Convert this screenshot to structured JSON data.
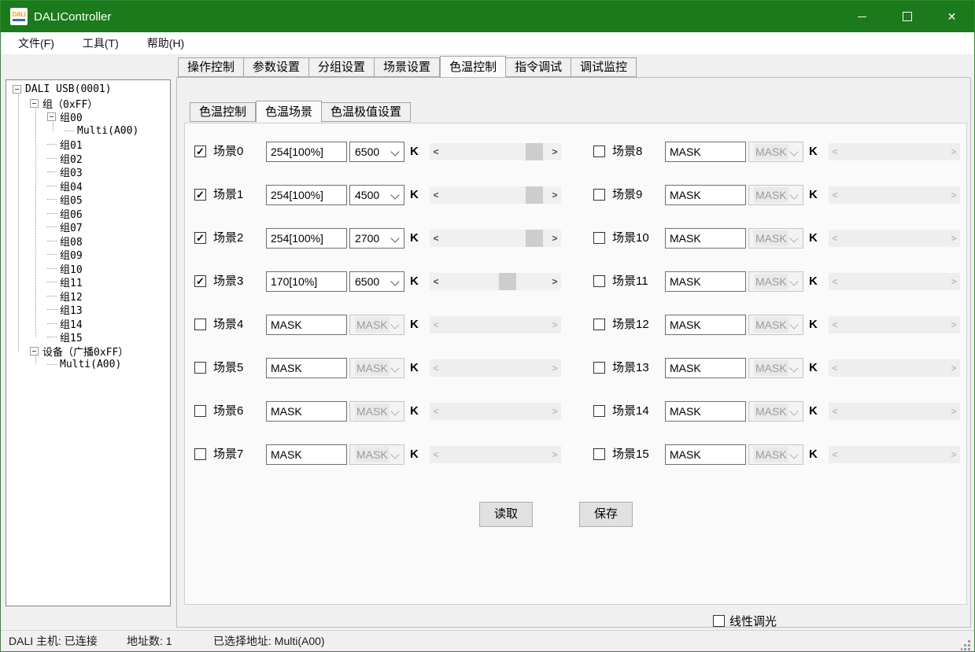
{
  "window": {
    "title": "DALIController",
    "icon_text": "DALI"
  },
  "menu": {
    "items": [
      "文件(F)",
      "工具(T)",
      "帮助(H)"
    ]
  },
  "tree": {
    "nodes": [
      {
        "label": "DALI USB(0001)",
        "level": 0,
        "expander": true
      },
      {
        "label": "组（0xFF）",
        "level": 1,
        "expander": true
      },
      {
        "label": "组00",
        "level": 2,
        "expander": true
      },
      {
        "label": "Multi(A00)",
        "level": 3,
        "expander": false
      },
      {
        "label": "组01",
        "level": 2,
        "expander": false
      },
      {
        "label": "组02",
        "level": 2,
        "expander": false
      },
      {
        "label": "组03",
        "level": 2,
        "expander": false
      },
      {
        "label": "组04",
        "level": 2,
        "expander": false
      },
      {
        "label": "组05",
        "level": 2,
        "expander": false
      },
      {
        "label": "组06",
        "level": 2,
        "expander": false
      },
      {
        "label": "组07",
        "level": 2,
        "expander": false
      },
      {
        "label": "组08",
        "level": 2,
        "expander": false
      },
      {
        "label": "组09",
        "level": 2,
        "expander": false
      },
      {
        "label": "组10",
        "level": 2,
        "expander": false
      },
      {
        "label": "组11",
        "level": 2,
        "expander": false
      },
      {
        "label": "组12",
        "level": 2,
        "expander": false
      },
      {
        "label": "组13",
        "level": 2,
        "expander": false
      },
      {
        "label": "组14",
        "level": 2,
        "expander": false
      },
      {
        "label": "组15",
        "level": 2,
        "expander": false
      },
      {
        "label": "设备（广播0xFF）",
        "level": 1,
        "expander": true
      },
      {
        "label": "Multi(A00)",
        "level": 2,
        "expander": false
      }
    ]
  },
  "tabs": {
    "items": [
      "操作控制",
      "参数设置",
      "分组设置",
      "场景设置",
      "色温控制",
      "指令调试",
      "调试监控"
    ],
    "active_index": 4
  },
  "subtabs": {
    "items": [
      "色温控制",
      "色温场景",
      "色温极值设置"
    ],
    "active_index": 1
  },
  "scenes": [
    {
      "label": "场景0",
      "checked": true,
      "level": "254[100%]",
      "temp": "6500",
      "enabled": true,
      "thumb": 122
    },
    {
      "label": "场景1",
      "checked": true,
      "level": "254[100%]",
      "temp": "4500",
      "enabled": true,
      "thumb": 122
    },
    {
      "label": "场景2",
      "checked": true,
      "level": "254[100%]",
      "temp": "2700",
      "enabled": true,
      "thumb": 122
    },
    {
      "label": "场景3",
      "checked": true,
      "level": "170[10%]",
      "temp": "6500",
      "enabled": true,
      "thumb": 88
    },
    {
      "label": "场景4",
      "checked": false,
      "level": "MASK",
      "temp": "MASK",
      "enabled": false,
      "thumb": null
    },
    {
      "label": "场景5",
      "checked": false,
      "level": "MASK",
      "temp": "MASK",
      "enabled": false,
      "thumb": null
    },
    {
      "label": "场景6",
      "checked": false,
      "level": "MASK",
      "temp": "MASK",
      "enabled": false,
      "thumb": null
    },
    {
      "label": "场景7",
      "checked": false,
      "level": "MASK",
      "temp": "MASK",
      "enabled": false,
      "thumb": null
    },
    {
      "label": "场景8",
      "checked": false,
      "level": "MASK",
      "temp": "MASK",
      "enabled": false,
      "thumb": null
    },
    {
      "label": "场景9",
      "checked": false,
      "level": "MASK",
      "temp": "MASK",
      "enabled": false,
      "thumb": null
    },
    {
      "label": "场景10",
      "checked": false,
      "level": "MASK",
      "temp": "MASK",
      "enabled": false,
      "thumb": null
    },
    {
      "label": "场景11",
      "checked": false,
      "level": "MASK",
      "temp": "MASK",
      "enabled": false,
      "thumb": null
    },
    {
      "label": "场景12",
      "checked": false,
      "level": "MASK",
      "temp": "MASK",
      "enabled": false,
      "thumb": null
    },
    {
      "label": "场景13",
      "checked": false,
      "level": "MASK",
      "temp": "MASK",
      "enabled": false,
      "thumb": null
    },
    {
      "label": "场景14",
      "checked": false,
      "level": "MASK",
      "temp": "MASK",
      "enabled": false,
      "thumb": null
    },
    {
      "label": "场景15",
      "checked": false,
      "level": "MASK",
      "temp": "MASK",
      "enabled": false,
      "thumb": null
    }
  ],
  "unit_label": "K",
  "buttons": {
    "read": "读取",
    "save": "保存"
  },
  "linear_dim_label": "线性调光",
  "status": {
    "host": "DALI 主机: 已连接",
    "addresses": "地址数: 1",
    "selected": "已选择地址: Multi(A00)"
  },
  "colors": {
    "titlebar": "#1b7a1b",
    "window_border": "#2e8b2e",
    "scroll_thumb": "#cdcdcd"
  }
}
